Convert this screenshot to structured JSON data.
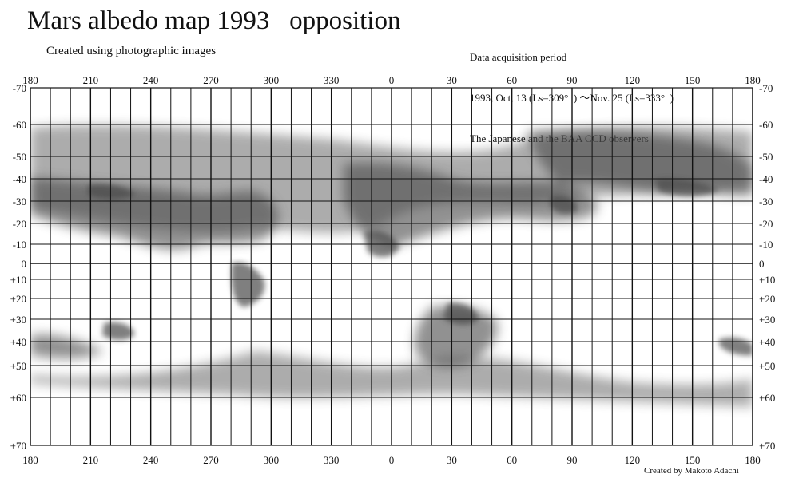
{
  "header": {
    "title": "Mars albedo map 1993   opposition",
    "subtitle": "Created using photographic images",
    "info_lines": [
      "Data acquisition period",
      "1993, Oct, 13 (Ls=309°  ) ～Nov. 25 (Ls=333°  )",
      "The Japanese and the BAA CCD observers"
    ]
  },
  "map": {
    "projection": "rectangular longitude-latitude grid",
    "longitude_ticks": [
      "180",
      "210",
      "240",
      "270",
      "300",
      "330",
      "0",
      "30",
      "60",
      "90",
      "120",
      "150",
      "180"
    ],
    "latitude_ticks": [
      "-70",
      "-60",
      "-50",
      "-40",
      "-30",
      "-20",
      "-10",
      "0",
      "+10",
      "+20",
      "+30",
      "+40",
      "+50",
      "+60",
      "+70"
    ],
    "grid_step_degrees": 10,
    "colors": {
      "ink": "#111111",
      "shading": "#4a4a4a",
      "paper": "#ffffff"
    }
  },
  "footer": {
    "credit": "Created by Makoto Adachi"
  }
}
